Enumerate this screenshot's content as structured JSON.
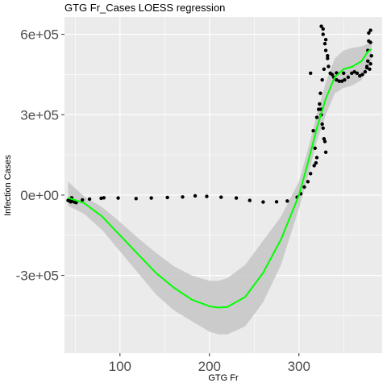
{
  "chart_data": {
    "type": "scatter",
    "title": "GTG Fr_Cases LOESS regression",
    "xlabel": "GTG Fr",
    "ylabel": "Infection Cases",
    "xlim": [
      38,
      393
    ],
    "ylim": [
      -590000,
      665000
    ],
    "x_ticks": [
      {
        "value": 100,
        "label": "100"
      },
      {
        "value": 200,
        "label": "200"
      },
      {
        "value": 300,
        "label": "300"
      }
    ],
    "y_ticks": [
      {
        "value": -300000,
        "label": "-3e+05"
      },
      {
        "value": 0,
        "label": "0e+00"
      },
      {
        "value": 300000,
        "label": "3e+05"
      },
      {
        "value": 600000,
        "label": "6e+05"
      }
    ],
    "grid": true,
    "colors": {
      "panel": "#ebebeb",
      "grid": "#ffffff",
      "points": "#000000",
      "fit_line": "#00ff00",
      "confidence_band": "#c8c8c8"
    },
    "points": [
      [
        42,
        -20000
      ],
      [
        44,
        -22000
      ],
      [
        45,
        -25000
      ],
      [
        46,
        -10000
      ],
      [
        47,
        -22000
      ],
      [
        49,
        -26000
      ],
      [
        51,
        -28000
      ],
      [
        58,
        -18000
      ],
      [
        66,
        -15000
      ],
      [
        79,
        -12000
      ],
      [
        82,
        -10000
      ],
      [
        98,
        -11000
      ],
      [
        118,
        -13000
      ],
      [
        135,
        -11000
      ],
      [
        153,
        -9000
      ],
      [
        170,
        -7000
      ],
      [
        184,
        -3000
      ],
      [
        197,
        -5000
      ],
      [
        213,
        -8000
      ],
      [
        230,
        -11000
      ],
      [
        245,
        -20000
      ],
      [
        260,
        -26000
      ],
      [
        275,
        -25000
      ],
      [
        287,
        -22000
      ],
      [
        298,
        -8000
      ],
      [
        302,
        5000
      ],
      [
        306,
        30000
      ],
      [
        310,
        50000
      ],
      [
        313,
        80000
      ],
      [
        317,
        110000
      ],
      [
        319,
        120000
      ],
      [
        320,
        140000
      ],
      [
        318,
        175000
      ],
      [
        316,
        240000
      ],
      [
        320,
        290000
      ],
      [
        322,
        320000
      ],
      [
        323,
        340000
      ],
      [
        325,
        300000
      ],
      [
        327,
        250000
      ],
      [
        329,
        200000
      ],
      [
        330,
        160000
      ],
      [
        328,
        210000
      ],
      [
        326,
        265000
      ],
      [
        325,
        320000
      ],
      [
        324,
        380000
      ],
      [
        326,
        430000
      ],
      [
        328,
        470000
      ],
      [
        332,
        520000
      ],
      [
        330,
        580000
      ],
      [
        327,
        620000
      ],
      [
        325,
        630000
      ],
      [
        327,
        600000
      ],
      [
        329,
        565000
      ],
      [
        330,
        540000
      ],
      [
        332,
        510000
      ],
      [
        333,
        480000
      ],
      [
        335,
        455000
      ],
      [
        337,
        450000
      ],
      [
        339,
        440000
      ],
      [
        342,
        430000
      ],
      [
        345,
        425000
      ],
      [
        348,
        425000
      ],
      [
        351,
        430000
      ],
      [
        355,
        440000
      ],
      [
        359,
        455000
      ],
      [
        362,
        460000
      ],
      [
        365,
        455000
      ],
      [
        368,
        445000
      ],
      [
        371,
        450000
      ],
      [
        374,
        460000
      ],
      [
        376,
        480000
      ],
      [
        377,
        500000
      ],
      [
        377,
        540000
      ],
      [
        378,
        575000
      ],
      [
        378,
        605000
      ],
      [
        380,
        615000
      ],
      [
        380,
        570000
      ],
      [
        381,
        520000
      ],
      [
        380,
        490000
      ],
      [
        379,
        470000
      ],
      [
        376,
        475000
      ],
      [
        350,
        455000
      ],
      [
        342,
        456000
      ],
      [
        313,
        455000
      ]
    ],
    "fit_line": [
      [
        42,
        -10000
      ],
      [
        60,
        -30000
      ],
      [
        80,
        -80000
      ],
      [
        100,
        -150000
      ],
      [
        120,
        -220000
      ],
      [
        140,
        -290000
      ],
      [
        160,
        -345000
      ],
      [
        180,
        -390000
      ],
      [
        200,
        -415000
      ],
      [
        210,
        -420000
      ],
      [
        220,
        -418000
      ],
      [
        240,
        -380000
      ],
      [
        260,
        -290000
      ],
      [
        280,
        -165000
      ],
      [
        300,
        0
      ],
      [
        310,
        120000
      ],
      [
        320,
        250000
      ],
      [
        330,
        360000
      ],
      [
        340,
        440000
      ],
      [
        350,
        470000
      ],
      [
        360,
        480000
      ],
      [
        370,
        500000
      ],
      [
        377,
        535000
      ],
      [
        381,
        545000
      ]
    ],
    "ci_upper": [
      [
        42,
        50000
      ],
      [
        60,
        -5000
      ],
      [
        80,
        -45000
      ],
      [
        100,
        -100000
      ],
      [
        120,
        -160000
      ],
      [
        140,
        -215000
      ],
      [
        160,
        -265000
      ],
      [
        180,
        -300000
      ],
      [
        200,
        -320000
      ],
      [
        210,
        -320000
      ],
      [
        220,
        -310000
      ],
      [
        240,
        -260000
      ],
      [
        260,
        -170000
      ],
      [
        280,
        -80000
      ],
      [
        300,
        50000
      ],
      [
        310,
        170000
      ],
      [
        320,
        300000
      ],
      [
        330,
        420000
      ],
      [
        340,
        510000
      ],
      [
        350,
        540000
      ],
      [
        360,
        550000
      ],
      [
        370,
        555000
      ],
      [
        377,
        565000
      ],
      [
        381,
        570000
      ]
    ],
    "ci_lower": [
      [
        42,
        -40000
      ],
      [
        60,
        -70000
      ],
      [
        80,
        -130000
      ],
      [
        100,
        -210000
      ],
      [
        120,
        -290000
      ],
      [
        140,
        -370000
      ],
      [
        160,
        -430000
      ],
      [
        180,
        -470000
      ],
      [
        200,
        -510000
      ],
      [
        210,
        -520000
      ],
      [
        220,
        -520000
      ],
      [
        240,
        -490000
      ],
      [
        260,
        -400000
      ],
      [
        280,
        -260000
      ],
      [
        300,
        -50000
      ],
      [
        310,
        70000
      ],
      [
        320,
        200000
      ],
      [
        330,
        300000
      ],
      [
        340,
        380000
      ],
      [
        350,
        400000
      ],
      [
        360,
        410000
      ],
      [
        370,
        430000
      ],
      [
        377,
        480000
      ],
      [
        381,
        500000
      ]
    ]
  }
}
